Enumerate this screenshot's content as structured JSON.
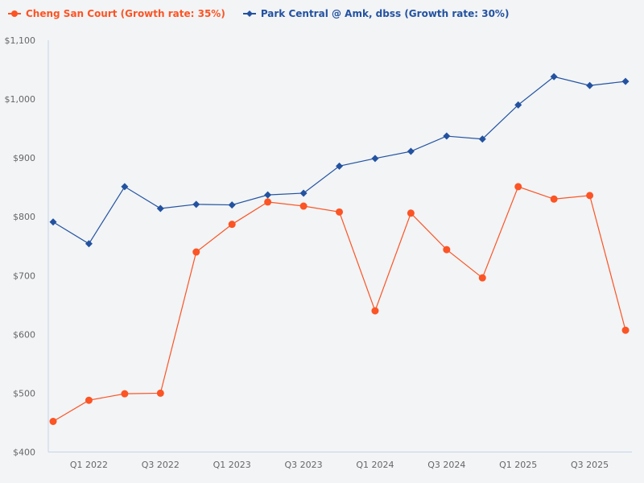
{
  "chart_data": {
    "type": "line",
    "title": "",
    "xlabel": "",
    "ylabel": "",
    "ylim": [
      400,
      1100
    ],
    "y_ticks": [
      "$400",
      "$500",
      "$600",
      "$700",
      "$800",
      "$900",
      "$1,000",
      "$1,100"
    ],
    "y_tick_values": [
      400,
      500,
      600,
      700,
      800,
      900,
      1000,
      1100
    ],
    "x": [
      "Q4 2021",
      "Q1 2022",
      "Q2 2022",
      "Q3 2022",
      "Q4 2022",
      "Q1 2023",
      "Q2 2023",
      "Q3 2023",
      "Q4 2023",
      "Q1 2024",
      "Q2 2024",
      "Q3 2024",
      "Q4 2024",
      "Q1 2025",
      "Q2 2025",
      "Q3 2025",
      "Q4 2025"
    ],
    "x_tick_labels": [
      "Q1 2022",
      "Q3 2022",
      "Q1 2023",
      "Q3 2023",
      "Q1 2024",
      "Q3 2024",
      "Q1 2025",
      "Q3 2025"
    ],
    "grid": false,
    "legend_position": "top-left",
    "series": [
      {
        "name": "Cheng San Court (Growth rate: 35%)",
        "color": "#fc5424",
        "marker": "circle",
        "values": [
          452,
          488,
          499,
          500,
          740,
          787,
          825,
          818,
          808,
          640,
          806,
          744,
          696,
          851,
          830,
          836,
          607
        ]
      },
      {
        "name": "Park Central @ Amk, dbss (Growth rate: 30%)",
        "color": "#2352a0",
        "marker": "diamond",
        "values": [
          791,
          754,
          851,
          814,
          821,
          820,
          837,
          840,
          886,
          899,
          911,
          937,
          932,
          990,
          1038,
          1023,
          1030
        ]
      }
    ]
  }
}
